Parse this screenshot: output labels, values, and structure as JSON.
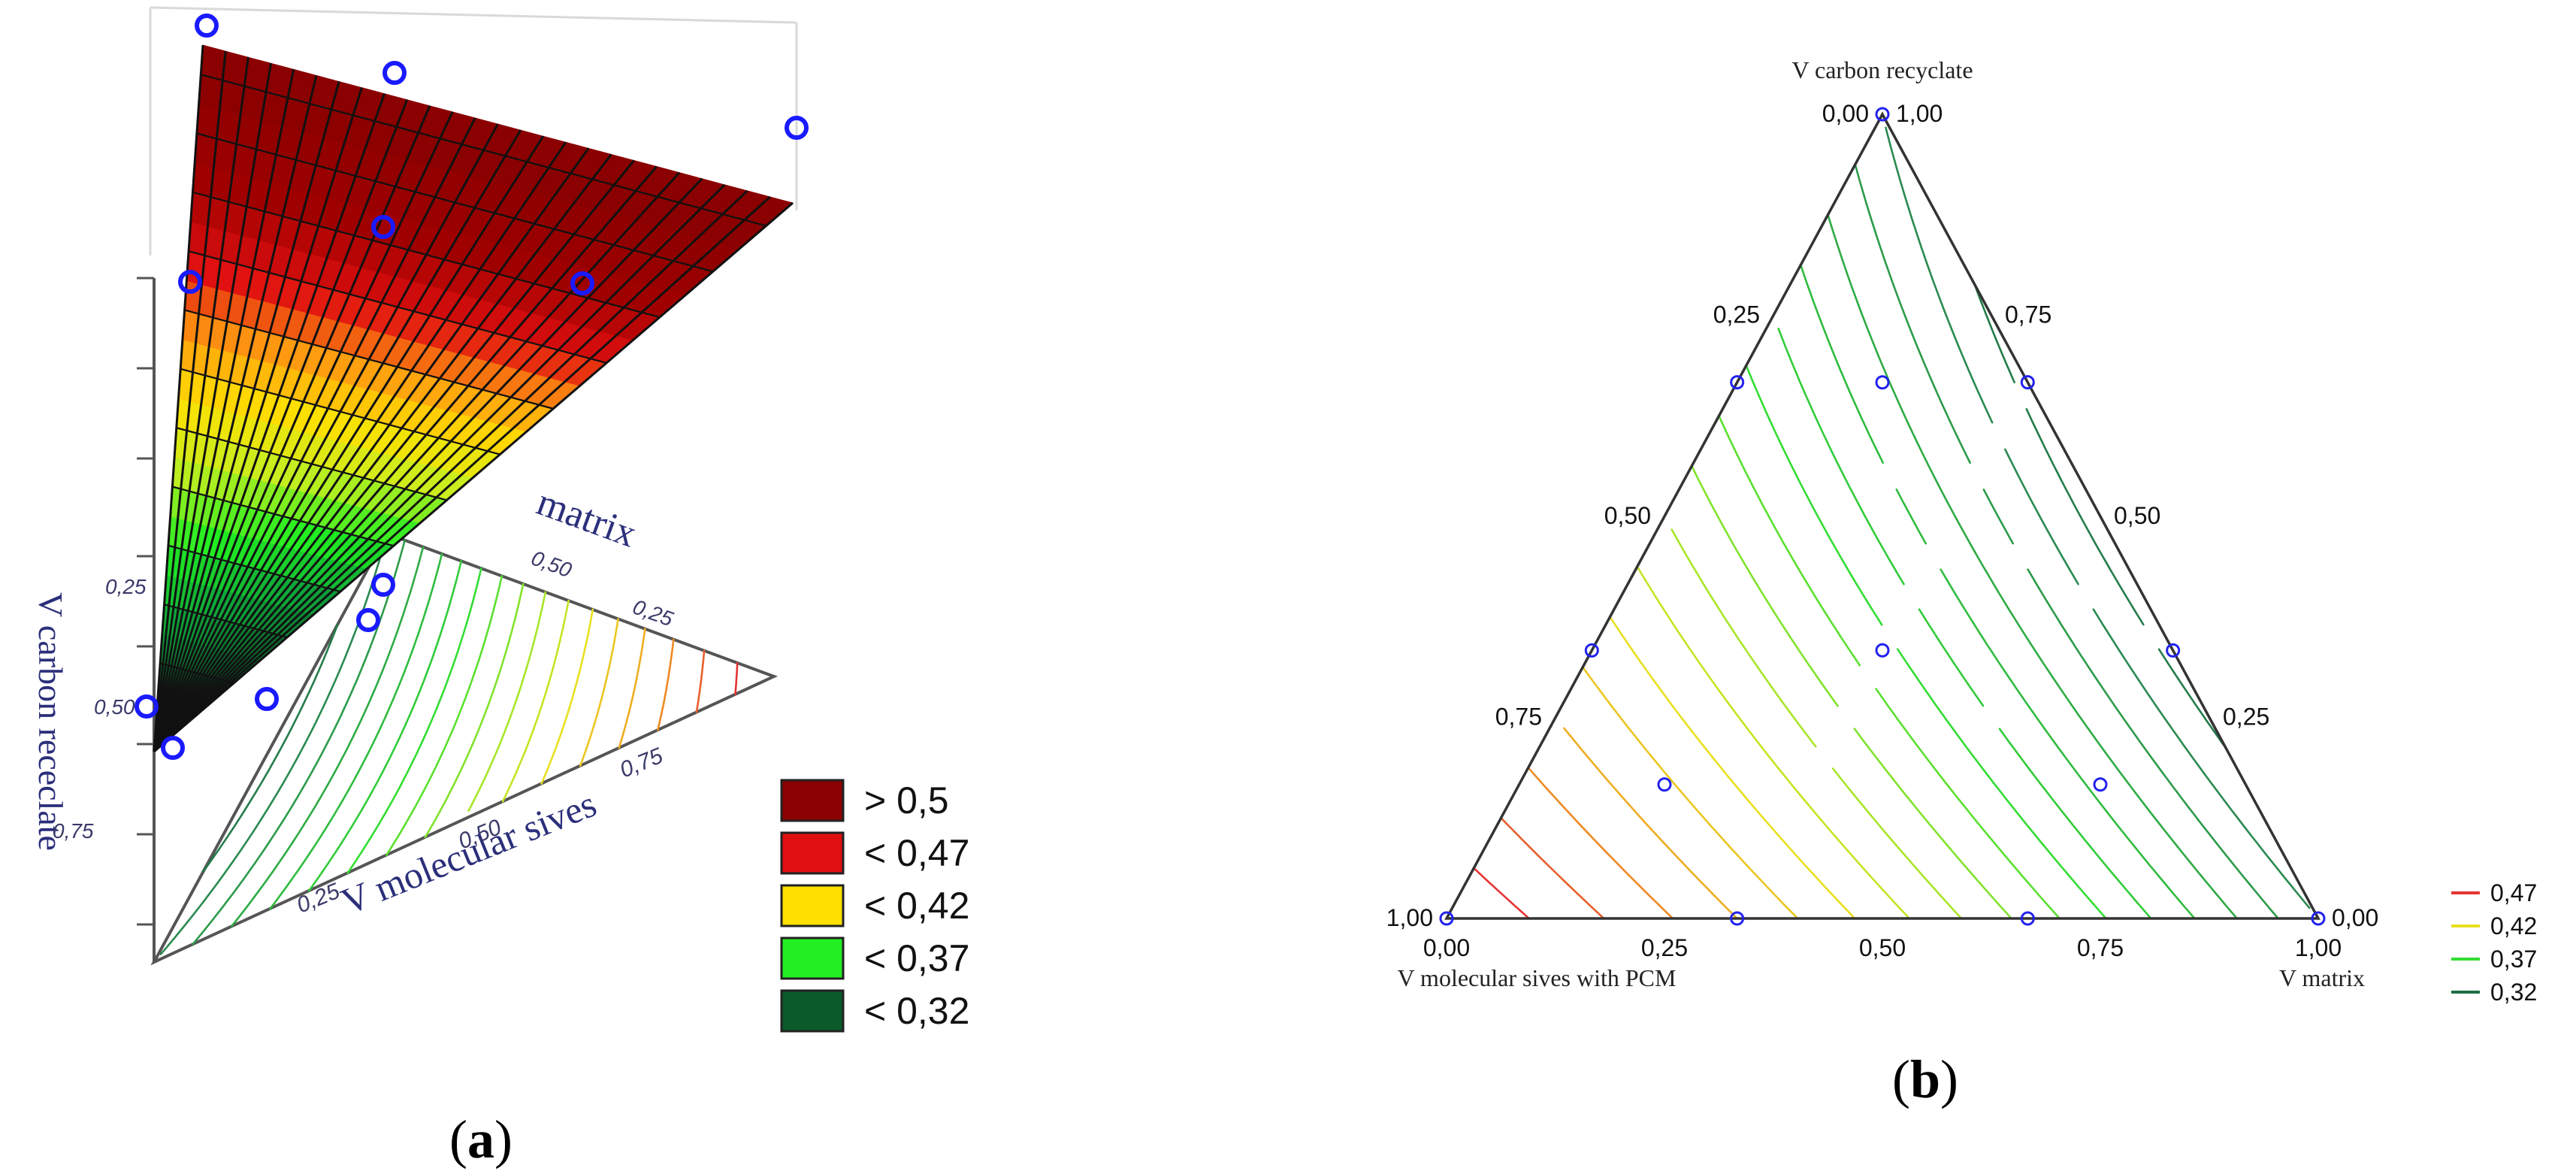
{
  "panel_a": {
    "label_open": "(",
    "label_letter": "a",
    "label_close": ")",
    "axis_z_label": "V carbon receclate",
    "axis_x_label": "V molecular sives",
    "axis_y_label": "matrix",
    "z_ticks": [
      "0,25",
      "0,50",
      "0,75"
    ],
    "x_ticks": [
      "0,25",
      "0,50",
      "0,75"
    ],
    "y_ticks": [
      "0,50",
      "0,25"
    ],
    "legend": [
      {
        "label": "> 0,5",
        "color": "#8b0000"
      },
      {
        "label": "< 0,47",
        "color": "#e01010"
      },
      {
        "label": "< 0,42",
        "color": "#ffe000"
      },
      {
        "label": "< 0,37",
        "color": "#22ee22"
      },
      {
        "label": "< 0,32",
        "color": "#0b5a2a"
      }
    ],
    "marker_color": "#1a1aff"
  },
  "panel_b": {
    "label_open": "(",
    "label_letter": "b",
    "label_close": ")",
    "vertex_top_label": "V carbon recyclate",
    "vertex_left_label": "V molecular sives with PCM",
    "vertex_right_label": "V matrix"
  },
  "chart_data": [
    {
      "type": "surface-3d",
      "title": "",
      "zlabel": "V carbon receclate",
      "xlabel": "V molecular sives",
      "ylabel": "matrix",
      "legend": [
        "> 0,5",
        "< 0,47",
        "< 0,42",
        "< 0,37",
        "< 0,32"
      ]
    },
    {
      "type": "ternary-contour",
      "title": "",
      "components": [
        "V molecular sives with PCM",
        "V matrix",
        "V carbon recyclate"
      ],
      "bottom_ticks": [
        "0,00",
        "0,25",
        "0,50",
        "0,75",
        "1,00"
      ],
      "left_ticks": [
        "1,00",
        "0,75",
        "0,50",
        "0,25",
        "0,00"
      ],
      "right_ticks": [
        "1,00",
        "0,75",
        "0,50",
        "0,25",
        "0,00"
      ],
      "contour_levels": [
        0.3,
        0.31,
        0.32,
        0.33,
        0.34,
        0.35,
        0.36,
        0.37,
        0.38,
        0.39,
        0.4,
        0.41,
        0.42,
        0.43,
        0.44,
        0.45,
        0.46,
        0.47,
        0.48,
        0.49,
        0.5
      ],
      "legend": [
        {
          "label": "0,47",
          "color": "#e53333"
        },
        {
          "label": "0,42",
          "color": "#e8e020"
        },
        {
          "label": "0,37",
          "color": "#33dd33"
        },
        {
          "label": "0,32",
          "color": "#1e6e45"
        }
      ],
      "points": [
        {
          "a": 1,
          "b": 0,
          "c": 0
        },
        {
          "a": 0,
          "b": 1,
          "c": 0
        },
        {
          "a": 0,
          "b": 0,
          "c": 1
        },
        {
          "a": 0.6667,
          "b": 0.3333,
          "c": 0
        },
        {
          "a": 0.3333,
          "b": 0.6667,
          "c": 0
        },
        {
          "a": 0.6667,
          "b": 0,
          "c": 0.3333
        },
        {
          "a": 0.3333,
          "b": 0,
          "c": 0.6667
        },
        {
          "a": 0,
          "b": 0.6667,
          "c": 0.3333
        },
        {
          "a": 0,
          "b": 0.3333,
          "c": 0.6667
        },
        {
          "a": 0.3333,
          "b": 0.3333,
          "c": 0.3333
        },
        {
          "a": 0.6667,
          "b": 0.1667,
          "c": 0.1667
        },
        {
          "a": 0.1667,
          "b": 0.6667,
          "c": 0.1667
        },
        {
          "a": 0.1667,
          "b": 0.1667,
          "c": 0.6667
        }
      ]
    }
  ]
}
